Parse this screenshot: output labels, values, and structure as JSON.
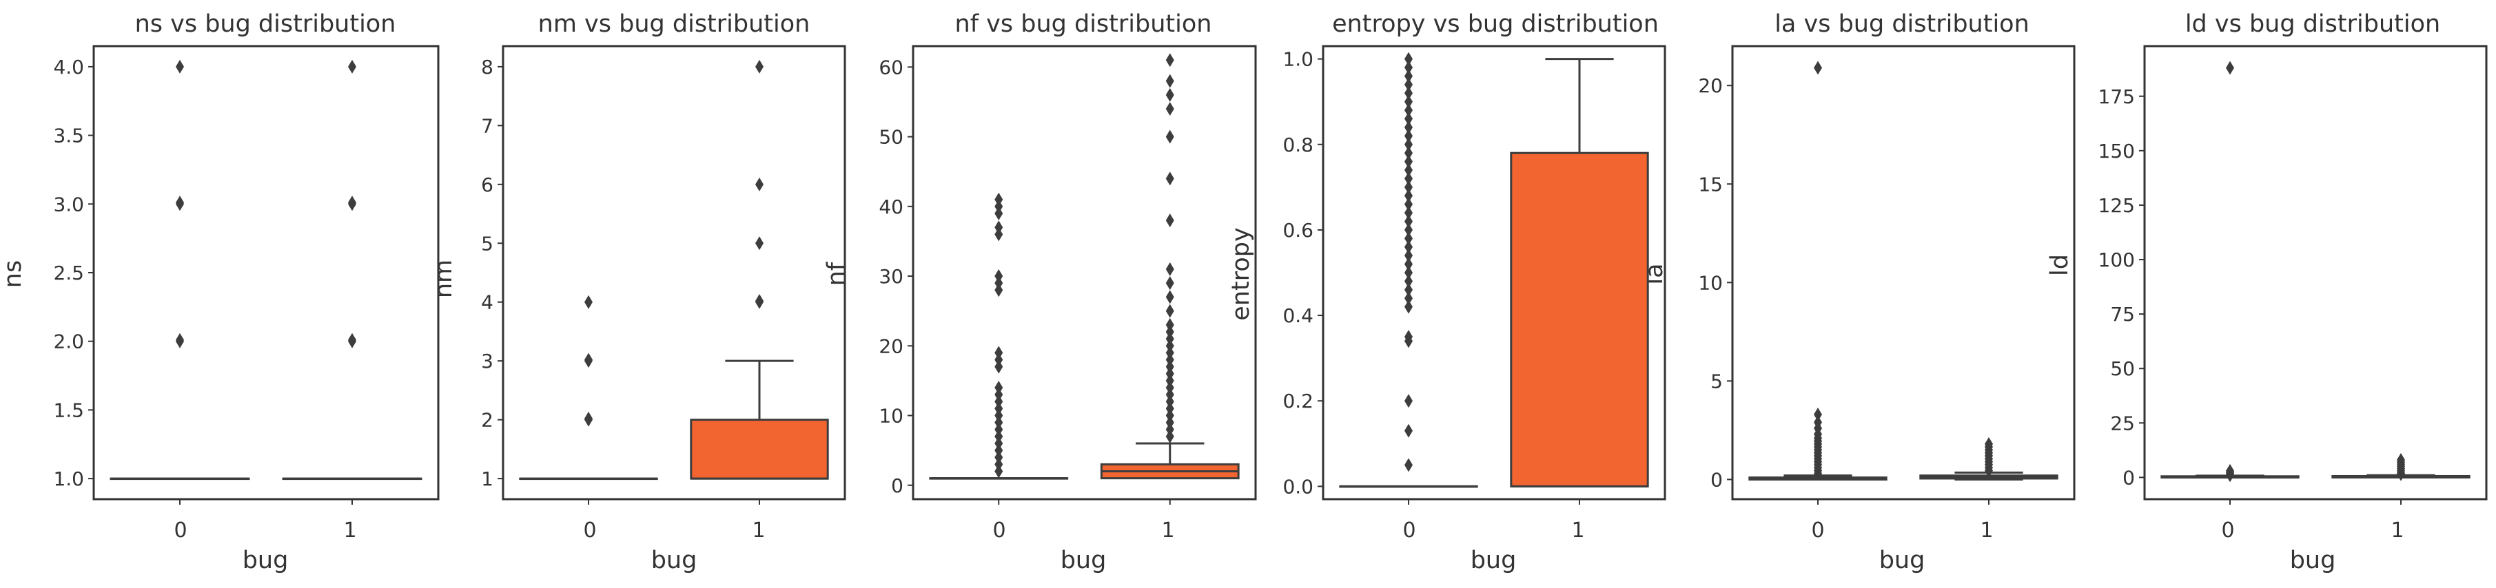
{
  "colors": {
    "box_fill": "#F26531",
    "line": "#3D3D3D",
    "axes": "#333333",
    "text": "#333333",
    "background": "#FFFFFF"
  },
  "chart_data": [
    {
      "type": "box",
      "title": "ns vs bug distribution",
      "xlabel": "bug",
      "ylabel": "ns",
      "categories": [
        "0",
        "1"
      ],
      "ylim": [
        0.85,
        4.15
      ],
      "yticks": [
        1.0,
        1.5,
        2.0,
        2.5,
        3.0,
        3.5,
        4.0
      ],
      "ytick_labels": [
        "1.0",
        "1.5",
        "2.0",
        "2.5",
        "3.0",
        "3.5",
        "4.0"
      ],
      "boxes": [
        {
          "category": "0",
          "q1": 1,
          "median": 1,
          "q3": 1,
          "whisker_low": 1,
          "whisker_high": 1,
          "outliers": [
            2,
            2.01,
            3,
            3.01,
            4
          ]
        },
        {
          "category": "1",
          "q1": 1,
          "median": 1,
          "q3": 1,
          "whisker_low": 1,
          "whisker_high": 1,
          "outliers": [
            2,
            2.01,
            3,
            3.01,
            4
          ]
        }
      ]
    },
    {
      "type": "box",
      "title": "nm vs bug distribution",
      "xlabel": "bug",
      "ylabel": "nm",
      "categories": [
        "0",
        "1"
      ],
      "ylim": [
        0.65,
        8.35
      ],
      "yticks": [
        1,
        2,
        3,
        4,
        5,
        6,
        7,
        8
      ],
      "ytick_labels": [
        "1",
        "2",
        "3",
        "4",
        "5",
        "6",
        "7",
        "8"
      ],
      "boxes": [
        {
          "category": "0",
          "q1": 1,
          "median": 1,
          "q3": 1,
          "whisker_low": 1,
          "whisker_high": 1,
          "outliers": [
            2,
            2.02,
            3,
            3.02,
            4
          ]
        },
        {
          "category": "1",
          "q1": 1,
          "median": 1,
          "q3": 2,
          "whisker_low": 1,
          "whisker_high": 3,
          "outliers": [
            4,
            4.02,
            5,
            6,
            8
          ]
        }
      ]
    },
    {
      "type": "box",
      "title": "nf vs bug distribution",
      "xlabel": "bug",
      "ylabel": "nf",
      "categories": [
        "0",
        "1"
      ],
      "ylim": [
        -2,
        63
      ],
      "yticks": [
        0,
        10,
        20,
        30,
        40,
        50,
        60
      ],
      "ytick_labels": [
        "0",
        "10",
        "20",
        "30",
        "40",
        "50",
        "60"
      ],
      "boxes": [
        {
          "category": "0",
          "q1": 1,
          "median": 1,
          "q3": 1,
          "whisker_low": 1,
          "whisker_high": 1,
          "outliers": [
            2,
            3,
            4,
            5,
            6,
            7,
            8,
            9,
            10,
            11,
            12,
            13,
            14,
            17,
            18,
            19,
            28,
            29,
            30,
            36,
            37,
            39,
            40,
            41
          ]
        },
        {
          "category": "1",
          "q1": 1,
          "median": 2,
          "q3": 3,
          "whisker_low": 1,
          "whisker_high": 6,
          "outliers": [
            7,
            8,
            9,
            10,
            11,
            12,
            13,
            14,
            15,
            16,
            17,
            18,
            19,
            20,
            21,
            22,
            23,
            25,
            27,
            29,
            31,
            38,
            44,
            50,
            54,
            56,
            58,
            61
          ]
        }
      ]
    },
    {
      "type": "box",
      "title": "entropy vs bug distribution",
      "xlabel": "bug",
      "ylabel": "entropy",
      "categories": [
        "0",
        "1"
      ],
      "ylim": [
        -0.03,
        1.03
      ],
      "yticks": [
        0.0,
        0.2,
        0.4,
        0.6,
        0.8,
        1.0
      ],
      "ytick_labels": [
        "0.0",
        "0.2",
        "0.4",
        "0.6",
        "0.8",
        "1.0"
      ],
      "boxes": [
        {
          "category": "0",
          "q1": 0,
          "median": 0,
          "q3": 0,
          "whisker_low": 0,
          "whisker_high": 0,
          "outliers": [
            0.05,
            0.13,
            0.2,
            0.34,
            0.35,
            0.42,
            0.44,
            0.46,
            0.48,
            0.5,
            0.52,
            0.54,
            0.56,
            0.58,
            0.6,
            0.62,
            0.64,
            0.66,
            0.68,
            0.7,
            0.72,
            0.74,
            0.76,
            0.78,
            0.8,
            0.82,
            0.84,
            0.86,
            0.88,
            0.9,
            0.92,
            0.94,
            0.96,
            0.98,
            1.0
          ]
        },
        {
          "category": "1",
          "q1": 0,
          "median": 0,
          "q3": 0.78,
          "whisker_low": 0,
          "whisker_high": 1.0,
          "outliers": []
        }
      ]
    },
    {
      "type": "box",
      "title": "la vs bug distribution",
      "xlabel": "bug",
      "ylabel": "la",
      "categories": [
        "0",
        "1"
      ],
      "ylim": [
        -1,
        22
      ],
      "yticks": [
        0,
        5,
        10,
        15,
        20
      ],
      "ytick_labels": [
        "0",
        "5",
        "10",
        "15",
        "20"
      ],
      "boxes": [
        {
          "category": "0",
          "q1": 0,
          "median": 0.05,
          "q3": 0.1,
          "whisker_low": 0,
          "whisker_high": 0.2,
          "outliers": [
            0.3,
            0.45,
            0.6,
            0.75,
            0.9,
            1.05,
            1.2,
            1.35,
            1.5,
            1.65,
            1.8,
            1.95,
            2.1,
            2.3,
            2.6,
            2.9,
            3.3,
            20.9
          ]
        },
        {
          "category": "1",
          "q1": 0.05,
          "median": 0.1,
          "q3": 0.2,
          "whisker_low": 0,
          "whisker_high": 0.35,
          "outliers": [
            0.45,
            0.6,
            0.75,
            0.9,
            1.05,
            1.2,
            1.35,
            1.5,
            1.65,
            1.8
          ]
        }
      ]
    },
    {
      "type": "box",
      "title": "ld vs bug distribution",
      "xlabel": "bug",
      "ylabel": "ld",
      "categories": [
        "0",
        "1"
      ],
      "ylim": [
        -10,
        198
      ],
      "yticks": [
        0,
        25,
        50,
        75,
        100,
        125,
        150,
        175
      ],
      "ytick_labels": [
        "0",
        "25",
        "50",
        "75",
        "100",
        "125",
        "150",
        "175"
      ],
      "boxes": [
        {
          "category": "0",
          "q1": 0,
          "median": 0,
          "q3": 0.5,
          "whisker_low": 0,
          "whisker_high": 0.8,
          "outliers": [
            1,
            1.5,
            2,
            2.5,
            3,
            188
          ]
        },
        {
          "category": "1",
          "q1": 0,
          "median": 0.2,
          "q3": 0.6,
          "whisker_low": 0,
          "whisker_high": 1,
          "outliers": [
            1.5,
            2,
            3,
            4,
            5,
            6,
            7,
            8
          ]
        }
      ]
    }
  ]
}
